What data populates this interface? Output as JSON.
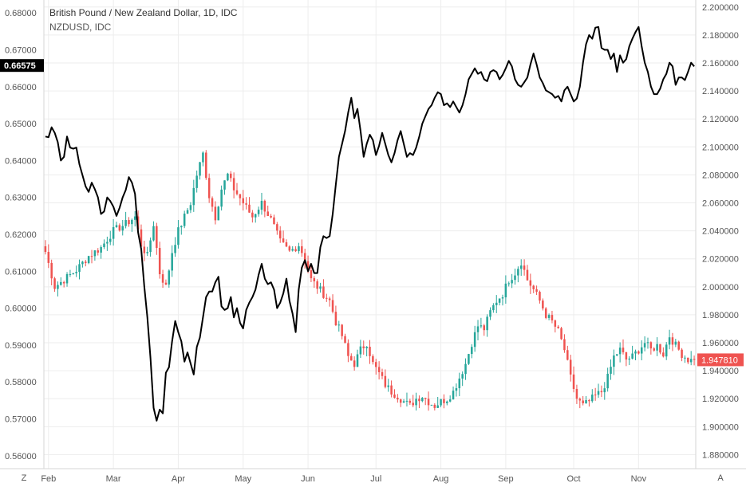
{
  "header": {
    "title": "British Pound / New Zealand Dollar, 1D, IDC",
    "overlay_symbol": "NZDUSD, IDC"
  },
  "corner_buttons": {
    "left": "Z",
    "right": "A"
  },
  "colors": {
    "up": "#26a69a",
    "down": "#ef5350",
    "overlay_line": "#000000",
    "grid": "#ededed",
    "axis_text": "#555555"
  },
  "chart_data": {
    "type": "candlestick",
    "title": "British Pound / New Zealand Dollar, 1D, IDC",
    "x_ticks": [
      "Feb",
      "Mar",
      "Apr",
      "May",
      "Jun",
      "Jul",
      "Aug",
      "Sep",
      "Oct",
      "Nov"
    ],
    "right_axis": {
      "series": "GBPNZD",
      "ylim": [
        1.87,
        2.205
      ],
      "ticks": [
        "2.200000",
        "2.180000",
        "2.160000",
        "2.140000",
        "2.120000",
        "2.100000",
        "2.080000",
        "2.060000",
        "2.040000",
        "2.020000",
        "2.000000",
        "1.980000",
        "1.960000",
        "1.940000",
        "1.920000",
        "1.900000",
        "1.880000"
      ],
      "last_value_label": "1.947810",
      "last_value": 1.94781
    },
    "left_axis": {
      "series": "NZDUSD",
      "ylim": [
        0.5565,
        0.6835
      ],
      "ticks": [
        "0.68000",
        "0.67000",
        "0.66000",
        "0.65000",
        "0.64000",
        "0.63000",
        "0.62000",
        "0.61000",
        "0.60000",
        "0.59000",
        "0.58000",
        "0.57000",
        "0.56000"
      ],
      "last_value_label": "0.66575",
      "last_value": 0.66575
    },
    "gbpnzd_anchors": [
      [
        0,
        2.025
      ],
      [
        3,
        2.0
      ],
      [
        6,
        2.005
      ],
      [
        10,
        2.012
      ],
      [
        14,
        2.022
      ],
      [
        18,
        2.028
      ],
      [
        22,
        2.04
      ],
      [
        26,
        2.045
      ],
      [
        29,
        2.05
      ],
      [
        31,
        2.03
      ],
      [
        33,
        2.022
      ],
      [
        35,
        2.045
      ],
      [
        37,
        2.01
      ],
      [
        39,
        2.0
      ],
      [
        41,
        2.025
      ],
      [
        43,
        2.04
      ],
      [
        45,
        2.05
      ],
      [
        47,
        2.06
      ],
      [
        49,
        2.08
      ],
      [
        51,
        2.095
      ],
      [
        53,
        2.065
      ],
      [
        55,
        2.05
      ],
      [
        57,
        2.07
      ],
      [
        59,
        2.08
      ],
      [
        61,
        2.07
      ],
      [
        64,
        2.06
      ],
      [
        67,
        2.05
      ],
      [
        70,
        2.06
      ],
      [
        73,
        2.048
      ],
      [
        76,
        2.032
      ],
      [
        79,
        2.025
      ],
      [
        82,
        2.03
      ],
      [
        84,
        2.02
      ],
      [
        86,
        2.005
      ],
      [
        88,
        2.0
      ],
      [
        90,
        1.995
      ],
      [
        92,
        1.99
      ],
      [
        94,
        1.975
      ],
      [
        96,
        1.965
      ],
      [
        98,
        1.95
      ],
      [
        100,
        1.945
      ],
      [
        102,
        1.955
      ],
      [
        104,
        1.96
      ],
      [
        106,
        1.945
      ],
      [
        108,
        1.938
      ],
      [
        110,
        1.93
      ],
      [
        112,
        1.925
      ],
      [
        114,
        1.922
      ],
      [
        116,
        1.918
      ],
      [
        118,
        1.915
      ],
      [
        120,
        1.92
      ],
      [
        122,
        1.922
      ],
      [
        124,
        1.918
      ],
      [
        126,
        1.915
      ],
      [
        128,
        1.918
      ],
      [
        130,
        1.92
      ],
      [
        132,
        1.925
      ],
      [
        134,
        1.935
      ],
      [
        136,
        1.945
      ],
      [
        138,
        1.96
      ],
      [
        140,
        1.972
      ],
      [
        142,
        1.97
      ],
      [
        144,
        1.982
      ],
      [
        146,
        1.99
      ],
      [
        148,
        1.995
      ],
      [
        150,
        2.005
      ],
      [
        152,
        2.01
      ],
      [
        154,
        2.018
      ],
      [
        156,
        2.005
      ],
      [
        158,
        1.998
      ],
      [
        160,
        1.99
      ],
      [
        162,
        1.98
      ],
      [
        164,
        1.975
      ],
      [
        166,
        1.968
      ],
      [
        168,
        1.955
      ],
      [
        170,
        1.935
      ],
      [
        172,
        1.92
      ],
      [
        174,
        1.915
      ],
      [
        176,
        1.918
      ],
      [
        178,
        1.922
      ],
      [
        180,
        1.925
      ],
      [
        182,
        1.935
      ],
      [
        184,
        1.95
      ],
      [
        186,
        1.955
      ],
      [
        188,
        1.948
      ],
      [
        190,
        1.95
      ],
      [
        192,
        1.955
      ],
      [
        194,
        1.96
      ],
      [
        196,
        1.955
      ],
      [
        198,
        1.958
      ],
      [
        200,
        1.952
      ],
      [
        202,
        1.965
      ],
      [
        204,
        1.958
      ],
      [
        206,
        1.952
      ],
      [
        208,
        1.948
      ],
      [
        210,
        1.947
      ]
    ],
    "nzdusd": [
      [
        0,
        0.6465
      ],
      [
        1,
        0.6463
      ],
      [
        2,
        0.649
      ],
      [
        3,
        0.6475
      ],
      [
        4,
        0.645
      ],
      [
        5,
        0.64
      ],
      [
        6,
        0.641
      ],
      [
        7,
        0.6465
      ],
      [
        8,
        0.6435
      ],
      [
        9,
        0.6432
      ],
      [
        10,
        0.6435
      ],
      [
        11,
        0.639
      ],
      [
        12,
        0.636
      ],
      [
        13,
        0.633
      ],
      [
        14,
        0.6315
      ],
      [
        15,
        0.634
      ],
      [
        16,
        0.6322
      ],
      [
        17,
        0.63
      ],
      [
        18,
        0.6255
      ],
      [
        19,
        0.6262
      ],
      [
        20,
        0.63
      ],
      [
        21,
        0.629
      ],
      [
        22,
        0.6275
      ],
      [
        23,
        0.625
      ],
      [
        24,
        0.6272
      ],
      [
        25,
        0.63
      ],
      [
        26,
        0.632
      ],
      [
        27,
        0.6355
      ],
      [
        28,
        0.634
      ],
      [
        29,
        0.631
      ],
      [
        30,
        0.6205
      ],
      [
        31,
        0.616
      ],
      [
        32,
        0.606
      ],
      [
        33,
        0.5975
      ],
      [
        34,
        0.5865
      ],
      [
        35,
        0.573
      ],
      [
        36,
        0.5695
      ],
      [
        37,
        0.5725
      ],
      [
        38,
        0.5715
      ],
      [
        39,
        0.5825
      ],
      [
        40,
        0.584
      ],
      [
        41,
        0.591
      ],
      [
        42,
        0.5965
      ],
      [
        43,
        0.5935
      ],
      [
        44,
        0.591
      ],
      [
        45,
        0.5855
      ],
      [
        46,
        0.588
      ],
      [
        47,
        0.585
      ],
      [
        48,
        0.582
      ],
      [
        49,
        0.5895
      ],
      [
        50,
        0.592
      ],
      [
        51,
        0.5975
      ],
      [
        52,
        0.603
      ],
      [
        53,
        0.6045
      ],
      [
        54,
        0.6045
      ],
      [
        55,
        0.607
      ],
      [
        56,
        0.6085
      ],
      [
        57,
        0.6005
      ],
      [
        58,
        0.5995
      ],
      [
        59,
        0.6
      ],
      [
        60,
        0.603
      ],
      [
        61,
        0.5975
      ],
      [
        62,
        0.6
      ],
      [
        63,
        0.596
      ],
      [
        64,
        0.5945
      ],
      [
        65,
        0.5995
      ],
      [
        66,
        0.6015
      ],
      [
        67,
        0.603
      ],
      [
        68,
        0.605
      ],
      [
        69,
        0.609
      ],
      [
        70,
        0.612
      ],
      [
        71,
        0.608
      ],
      [
        72,
        0.6065
      ],
      [
        73,
        0.607
      ],
      [
        74,
        0.605
      ],
      [
        75,
        0.6
      ],
      [
        76,
        0.6015
      ],
      [
        77,
        0.604
      ],
      [
        78,
        0.608
      ],
      [
        79,
        0.602
      ],
      [
        80,
        0.5985
      ],
      [
        81,
        0.5935
      ],
      [
        82,
        0.605
      ],
      [
        83,
        0.611
      ],
      [
        84,
        0.613
      ],
      [
        85,
        0.61
      ],
      [
        86,
        0.612
      ],
      [
        87,
        0.6095
      ],
      [
        88,
        0.6095
      ],
      [
        89,
        0.6165
      ],
      [
        90,
        0.6195
      ],
      [
        91,
        0.619
      ],
      [
        92,
        0.6195
      ],
      [
        93,
        0.6255
      ],
      [
        94,
        0.6335
      ],
      [
        95,
        0.641
      ],
      [
        96,
        0.6445
      ],
      [
        97,
        0.648
      ],
      [
        98,
        0.653
      ],
      [
        99,
        0.657
      ],
      [
        100,
        0.6515
      ],
      [
        101,
        0.654
      ],
      [
        102,
        0.648
      ],
      [
        103,
        0.641
      ],
      [
        104,
        0.6445
      ],
      [
        105,
        0.647
      ],
      [
        106,
        0.6455
      ],
      [
        107,
        0.6415
      ],
      [
        108,
        0.644
      ],
      [
        109,
        0.6475
      ],
      [
        110,
        0.6445
      ],
      [
        111,
        0.6415
      ],
      [
        112,
        0.6395
      ],
      [
        113,
        0.642
      ],
      [
        114,
        0.6455
      ],
      [
        115,
        0.648
      ],
      [
        116,
        0.6445
      ],
      [
        117,
        0.641
      ],
      [
        118,
        0.642
      ],
      [
        119,
        0.6415
      ],
      [
        120,
        0.6435
      ],
      [
        121,
        0.6465
      ],
      [
        122,
        0.65
      ],
      [
        123,
        0.652
      ],
      [
        124,
        0.654
      ],
      [
        125,
        0.655
      ],
      [
        126,
        0.657
      ],
      [
        127,
        0.6585
      ],
      [
        128,
        0.658
      ],
      [
        129,
        0.655
      ],
      [
        130,
        0.6555
      ],
      [
        131,
        0.6545
      ],
      [
        132,
        0.656
      ],
      [
        133,
        0.6545
      ],
      [
        134,
        0.653
      ],
      [
        135,
        0.655
      ],
      [
        136,
        0.658
      ],
      [
        137,
        0.662
      ],
      [
        138,
        0.6635
      ],
      [
        139,
        0.665
      ],
      [
        140,
        0.6635
      ],
      [
        141,
        0.664
      ],
      [
        142,
        0.662
      ],
      [
        143,
        0.6615
      ],
      [
        144,
        0.664
      ],
      [
        145,
        0.6645
      ],
      [
        146,
        0.664
      ],
      [
        147,
        0.662
      ],
      [
        148,
        0.6632
      ],
      [
        149,
        0.665
      ],
      [
        150,
        0.667
      ],
      [
        151,
        0.6655
      ],
      [
        152,
        0.662
      ],
      [
        153,
        0.6605
      ],
      [
        154,
        0.66
      ],
      [
        155,
        0.6612
      ],
      [
        156,
        0.6625
      ],
      [
        157,
        0.666
      ],
      [
        158,
        0.669
      ],
      [
        159,
        0.666
      ],
      [
        160,
        0.6625
      ],
      [
        161,
        0.661
      ],
      [
        162,
        0.659
      ],
      [
        163,
        0.6585
      ],
      [
        164,
        0.658
      ],
      [
        165,
        0.657
      ],
      [
        166,
        0.6575
      ],
      [
        167,
        0.656
      ],
      [
        168,
        0.659
      ],
      [
        169,
        0.66
      ],
      [
        170,
        0.658
      ],
      [
        171,
        0.656
      ],
      [
        172,
        0.6568
      ],
      [
        173,
        0.66
      ],
      [
        174,
        0.6665
      ],
      [
        175,
        0.6715
      ],
      [
        176,
        0.674
      ],
      [
        177,
        0.673
      ],
      [
        178,
        0.676
      ],
      [
        179,
        0.6762
      ],
      [
        180,
        0.6705
      ],
      [
        181,
        0.67
      ],
      [
        182,
        0.67
      ],
      [
        183,
        0.6675
      ],
      [
        184,
        0.669
      ],
      [
        185,
        0.664
      ],
      [
        186,
        0.6685
      ],
      [
        187,
        0.6665
      ],
      [
        188,
        0.6675
      ],
      [
        189,
        0.671
      ],
      [
        190,
        0.673
      ],
      [
        191,
        0.6748
      ],
      [
        192,
        0.6762
      ],
      [
        193,
        0.671
      ],
      [
        194,
        0.6665
      ],
      [
        195,
        0.664
      ],
      [
        196,
        0.66
      ],
      [
        197,
        0.658
      ],
      [
        198,
        0.658
      ],
      [
        199,
        0.6595
      ],
      [
        200,
        0.662
      ],
      [
        201,
        0.6635
      ],
      [
        202,
        0.6665
      ],
      [
        203,
        0.6655
      ],
      [
        204,
        0.6605
      ],
      [
        205,
        0.6625
      ],
      [
        206,
        0.6625
      ],
      [
        207,
        0.6618
      ],
      [
        208,
        0.664
      ],
      [
        209,
        0.6665
      ],
      [
        210,
        0.6655
      ]
    ]
  }
}
